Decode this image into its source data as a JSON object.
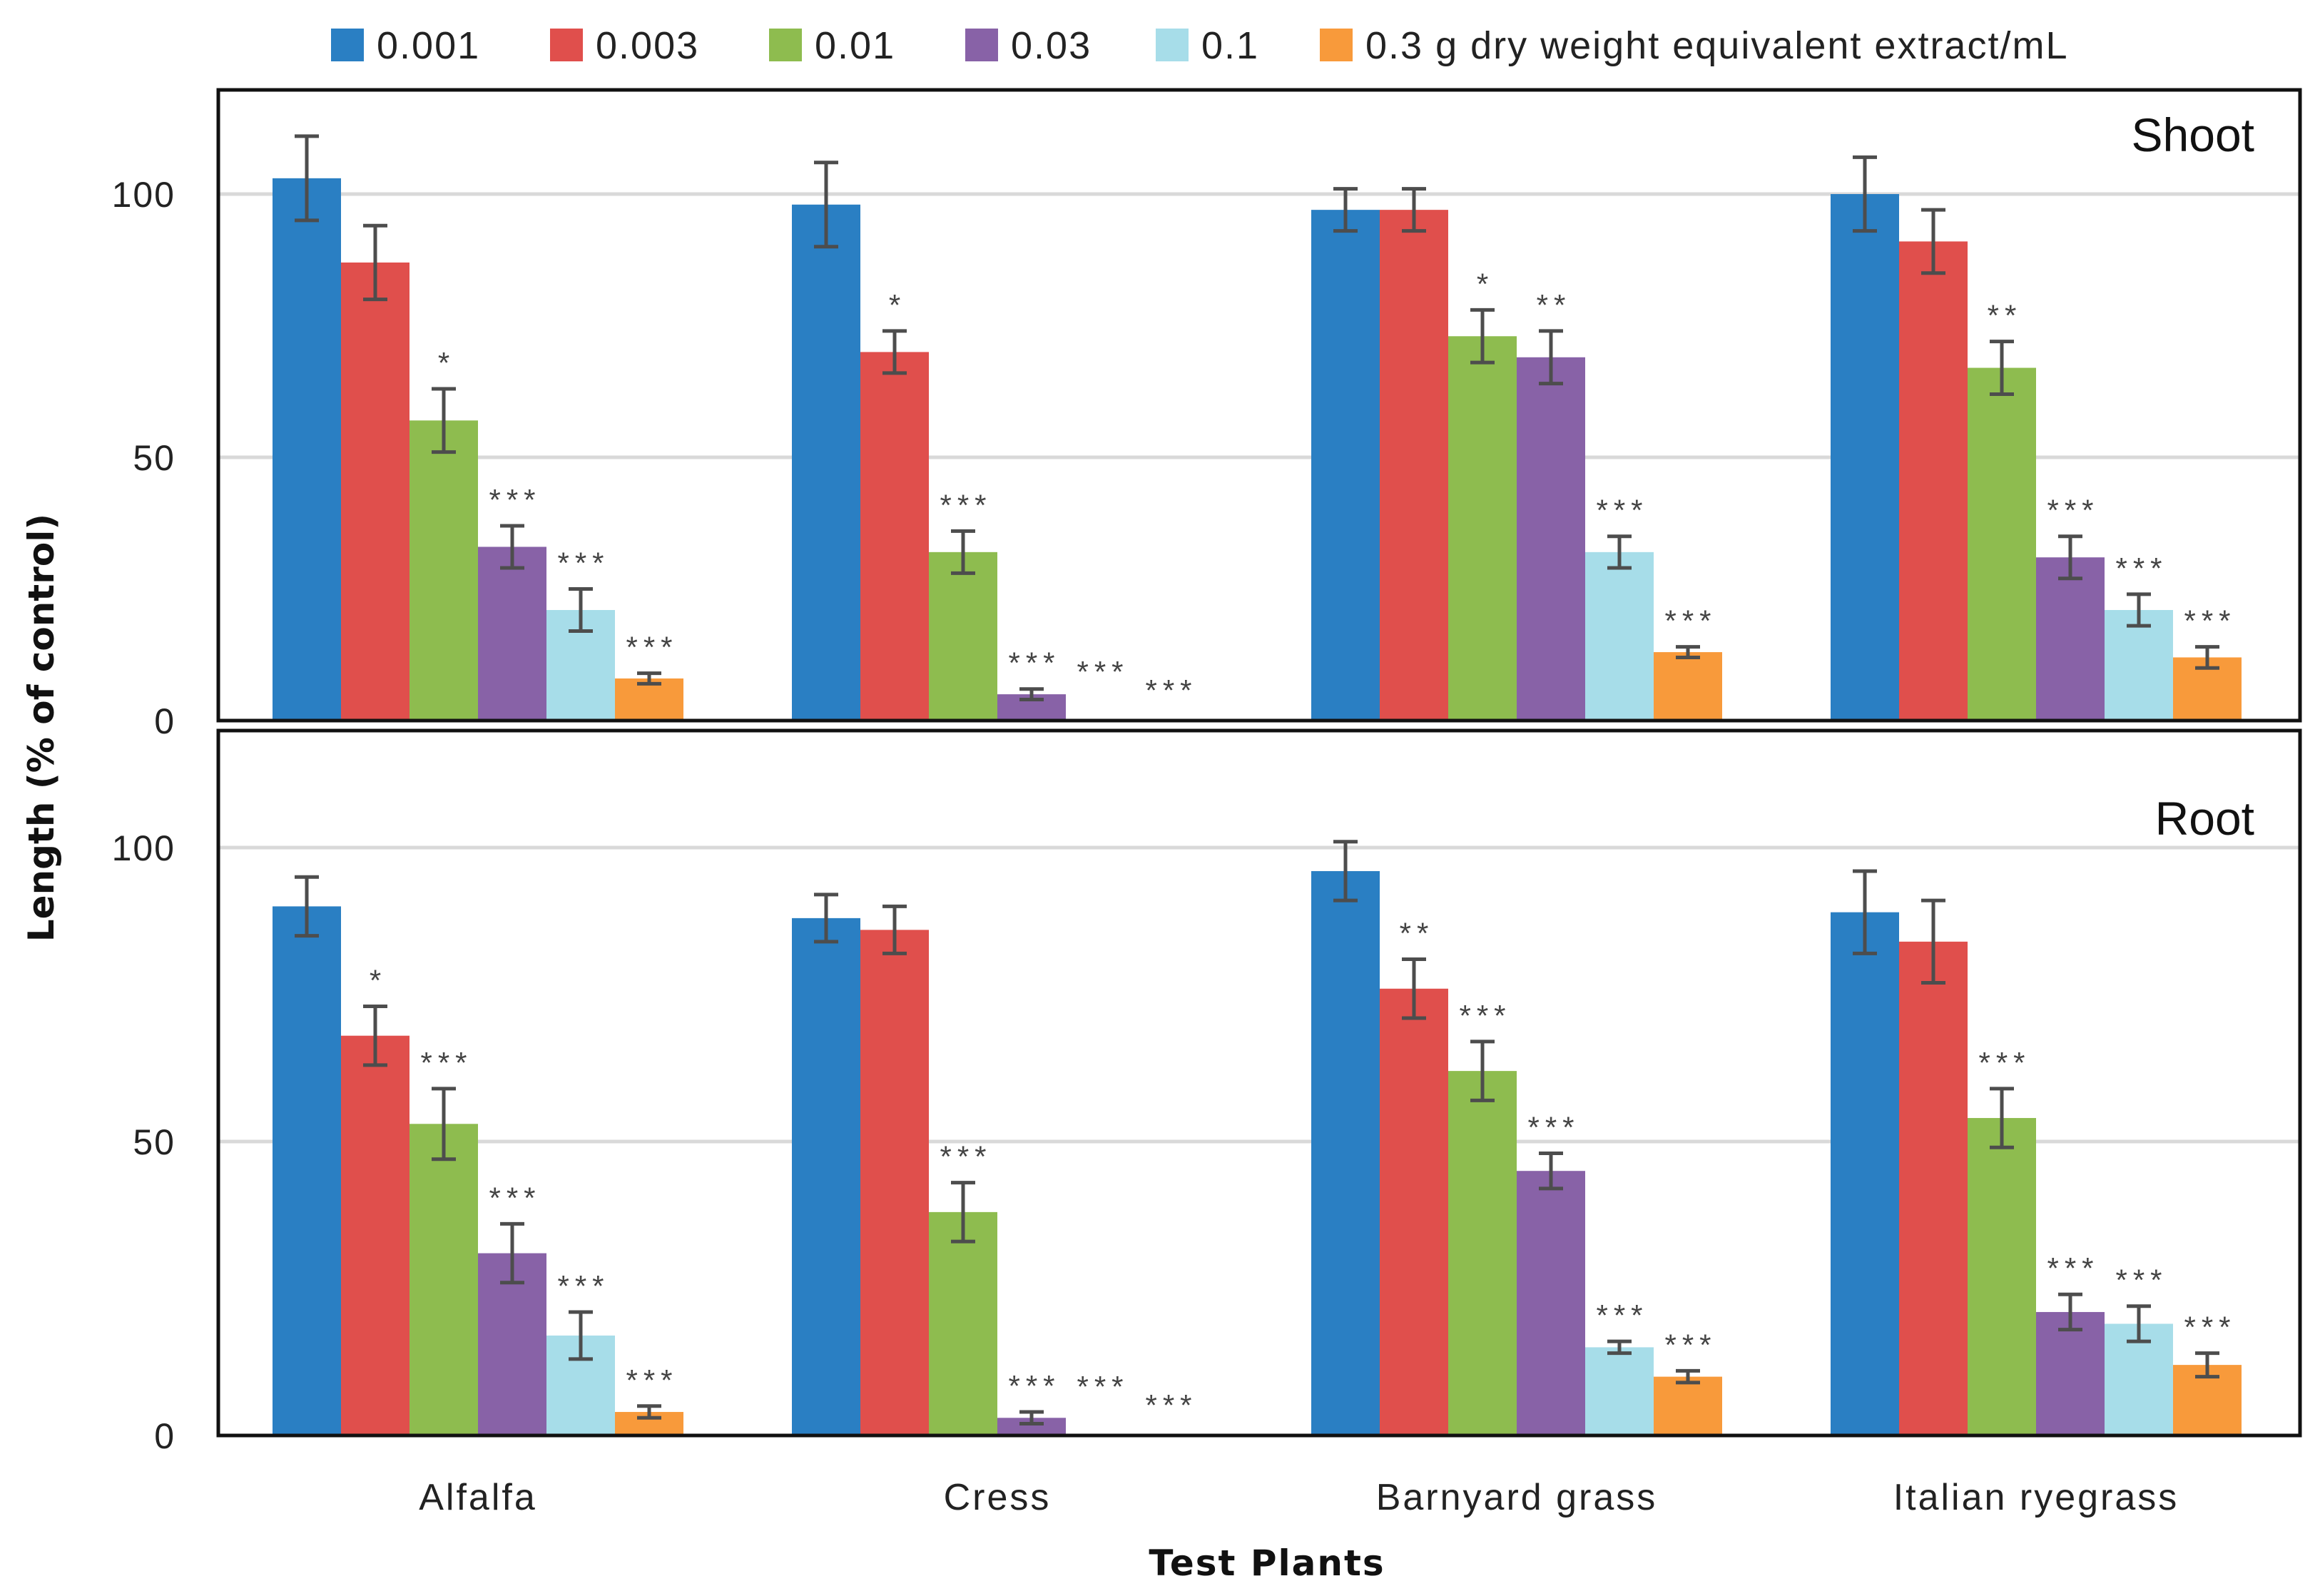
{
  "chart_data": {
    "type": "bar",
    "xlabel": "Test Plants",
    "ylabel": "Length (% of control)",
    "categories": [
      "Alfalfa",
      "Cress",
      "Barnyard grass",
      "Italian ryegrass"
    ],
    "series_names": [
      "0.001",
      "0.003",
      "0.01",
      "0.03",
      "0.1",
      "0.3 g dry weight equivalent extract/mL"
    ],
    "colors": [
      "#2a7fc3",
      "#e04f4c",
      "#8ebc4f",
      "#8862a7",
      "#a7dde9",
      "#f89a3b"
    ],
    "y_ticks": [
      "0",
      "50",
      "100"
    ],
    "ylim": [
      0,
      120
    ],
    "panels": [
      {
        "title": "Shoot",
        "values": [
          [
            103,
            87,
            57,
            33,
            21,
            8
          ],
          [
            98,
            70,
            32,
            5,
            0,
            0
          ],
          [
            97,
            97,
            73,
            69,
            32,
            13
          ],
          [
            100,
            91,
            67,
            31,
            21,
            12
          ]
        ],
        "errors": [
          [
            8,
            7,
            6,
            4,
            4,
            1
          ],
          [
            8,
            4,
            4,
            1,
            0,
            0
          ],
          [
            4,
            4,
            5,
            5,
            3,
            1
          ],
          [
            7,
            6,
            5,
            4,
            3,
            2
          ]
        ],
        "sig": [
          [
            "",
            "",
            "*",
            "***",
            "***",
            "***"
          ],
          [
            "",
            "*",
            "***",
            "***",
            "***",
            "***"
          ],
          [
            "",
            "",
            "*",
            "**",
            "***",
            "***"
          ],
          [
            "",
            "",
            "**",
            "***",
            "***",
            "***"
          ]
        ]
      },
      {
        "title": "Root",
        "values": [
          [
            90,
            68,
            53,
            31,
            17,
            4
          ],
          [
            88,
            86,
            38,
            3,
            0,
            0
          ],
          [
            96,
            76,
            62,
            45,
            15,
            10
          ],
          [
            89,
            84,
            54,
            21,
            19,
            12
          ]
        ],
        "errors": [
          [
            5,
            5,
            6,
            5,
            4,
            1
          ],
          [
            4,
            4,
            5,
            1,
            0,
            0
          ],
          [
            5,
            5,
            5,
            3,
            1,
            1
          ],
          [
            7,
            7,
            5,
            3,
            3,
            2
          ]
        ],
        "sig": [
          [
            "",
            "*",
            "***",
            "***",
            "***",
            "***"
          ],
          [
            "",
            "",
            "***",
            "***",
            "***",
            "***"
          ],
          [
            "",
            "**",
            "***",
            "***",
            "***",
            "***"
          ],
          [
            "",
            "",
            "***",
            "***",
            "***",
            "***"
          ]
        ]
      }
    ]
  }
}
